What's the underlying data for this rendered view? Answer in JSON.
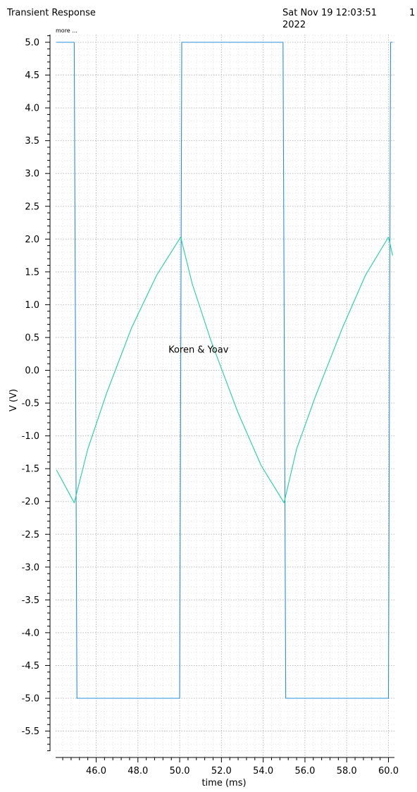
{
  "header": {
    "title": "Transient Response",
    "date_line1": "Sat Nov 19 12:03:51",
    "date_line2": "2022",
    "page_number": "1",
    "more_label": "more ..."
  },
  "chart_data": {
    "type": "line",
    "title": "Transient Response",
    "xlabel": "time (ms)",
    "ylabel": "V (V)",
    "xlim": [
      44.1,
      60.2
    ],
    "ylim": [
      -5.85,
      5.1
    ],
    "grid": true,
    "annotation": {
      "text": "Koren & Yoav",
      "x": 50.9,
      "y": 0.27
    },
    "x_ticks": [
      {
        "value": 46,
        "label": "46.0"
      },
      {
        "value": 48,
        "label": "48.0"
      },
      {
        "value": 50,
        "label": "50.0"
      },
      {
        "value": 52,
        "label": "52.0"
      },
      {
        "value": 54,
        "label": "54.0"
      },
      {
        "value": 56,
        "label": "56.0"
      },
      {
        "value": 58,
        "label": "58.0"
      },
      {
        "value": 60,
        "label": "60.0"
      }
    ],
    "y_ticks": [
      {
        "value": 5.0,
        "label": "5.0"
      },
      {
        "value": 4.5,
        "label": "4.5"
      },
      {
        "value": 4.0,
        "label": "4.0"
      },
      {
        "value": 3.5,
        "label": "3.5"
      },
      {
        "value": 3.0,
        "label": "3.0"
      },
      {
        "value": 2.5,
        "label": "2.5"
      },
      {
        "value": 2.0,
        "label": "2.0"
      },
      {
        "value": 1.5,
        "label": "1.5"
      },
      {
        "value": 1.0,
        "label": "1.0"
      },
      {
        "value": 0.5,
        "label": "0.5"
      },
      {
        "value": 0.0,
        "label": "0.0"
      },
      {
        "value": -0.5,
        "label": "-0.5"
      },
      {
        "value": -1.0,
        "label": "-1.0"
      },
      {
        "value": -1.5,
        "label": "-1.5"
      },
      {
        "value": -2.0,
        "label": "-2.0"
      },
      {
        "value": -2.5,
        "label": "-2.5"
      },
      {
        "value": -3.0,
        "label": "-3.0"
      },
      {
        "value": -3.5,
        "label": "-3.5"
      },
      {
        "value": -4.0,
        "label": "-4.0"
      },
      {
        "value": -4.5,
        "label": "-4.5"
      },
      {
        "value": -5.0,
        "label": "-5.0"
      },
      {
        "value": -5.5,
        "label": "-5.5"
      }
    ],
    "series": [
      {
        "color": "#2a8fd8",
        "points": [
          [
            44.1,
            5.0
          ],
          [
            44.95,
            5.0
          ],
          [
            45.08,
            -5.0
          ],
          [
            50.0,
            -5.0
          ],
          [
            50.1,
            5.0
          ],
          [
            54.95,
            5.0
          ],
          [
            55.08,
            -5.0
          ],
          [
            60.0,
            -5.0
          ],
          [
            60.1,
            5.0
          ],
          [
            60.2,
            5.0
          ]
        ]
      },
      {
        "color": "#20d29c",
        "points": [
          [
            44.1,
            -1.52
          ],
          [
            44.95,
            -2.02
          ],
          [
            45.6,
            -1.2
          ],
          [
            46.5,
            -0.35
          ],
          [
            47.7,
            0.65
          ],
          [
            48.9,
            1.45
          ],
          [
            50.05,
            2.03
          ],
          [
            50.6,
            1.32
          ],
          [
            51.5,
            0.45
          ],
          [
            52.8,
            -0.65
          ],
          [
            53.9,
            -1.45
          ],
          [
            55.0,
            -2.02
          ],
          [
            55.6,
            -1.2
          ],
          [
            56.5,
            -0.4
          ],
          [
            57.8,
            0.65
          ],
          [
            58.9,
            1.45
          ],
          [
            60.0,
            2.03
          ],
          [
            60.2,
            1.75
          ]
        ]
      }
    ]
  }
}
